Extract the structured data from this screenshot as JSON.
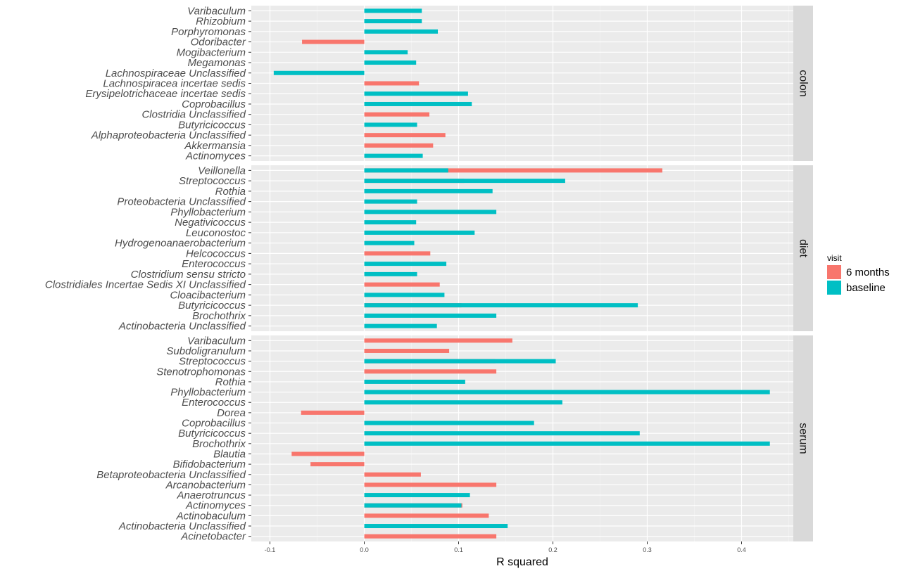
{
  "chart_data": {
    "type": "bar",
    "orientation": "horizontal",
    "xlabel": "R squared",
    "xlim": [
      -0.1,
      0.45
    ],
    "xticks": [
      -0.1,
      0.0,
      0.1,
      0.2,
      0.3,
      0.4
    ],
    "xtick_labels": [
      "-0.1",
      "0.0",
      "0.1",
      "0.2",
      "0.3",
      "0.4"
    ],
    "grid": true,
    "legend": {
      "title": "visit",
      "placement": "right",
      "entries": [
        {
          "name": "6 months",
          "color": "#f8766d"
        },
        {
          "name": "baseline",
          "color": "#00bfc4"
        }
      ]
    },
    "facets": [
      {
        "name": "colon",
        "categories": [
          "Varibaculum",
          "Rhizobium",
          "Porphyromonas",
          "Odoribacter",
          "Mogibacterium",
          "Megamonas",
          "Lachnospiraceae Unclassified",
          "Lachnospiracea incertae sedis",
          "Erysipelotrichaceae incertae sedis",
          "Coprobacillus",
          "Clostridia Unclassified",
          "Butyricicoccus",
          "Alphaproteobacteria Unclassified",
          "Akkermansia",
          "Actinomyces"
        ],
        "series": [
          {
            "name": "6 months",
            "values": [
              null,
              null,
              null,
              -0.066,
              null,
              null,
              null,
              0.058,
              null,
              null,
              0.069,
              null,
              0.086,
              0.073,
              null
            ]
          },
          {
            "name": "baseline",
            "values": [
              0.061,
              0.061,
              0.078,
              null,
              0.046,
              0.055,
              -0.096,
              null,
              0.11,
              0.114,
              null,
              0.056,
              null,
              null,
              0.062
            ]
          }
        ]
      },
      {
        "name": "diet",
        "categories": [
          "Veillonella",
          "Streptococcus",
          "Rothia",
          "Proteobacteria Unclassified",
          "Phyllobacterium",
          "Negativicoccus",
          "Leuconostoc",
          "Hydrogenoanaerobacterium",
          "Helcococcus",
          "Enterococcus",
          "Clostridium sensu stricto",
          "Clostridiales Incertae Sedis XI Unclassified",
          "Cloacibacterium",
          "Butyricicoccus",
          "Brochothrix",
          "Actinobacteria Unclassified"
        ],
        "series": [
          {
            "name": "6 months",
            "values": [
              0.316,
              0.106,
              null,
              null,
              null,
              null,
              null,
              null,
              0.07,
              null,
              null,
              0.08,
              null,
              0.103,
              null,
              null
            ]
          },
          {
            "name": "baseline",
            "values": [
              0.089,
              0.213,
              0.136,
              0.056,
              0.14,
              0.055,
              0.117,
              0.053,
              null,
              0.087,
              0.056,
              null,
              0.085,
              0.29,
              0.14,
              0.077
            ]
          }
        ]
      },
      {
        "name": "serum",
        "categories": [
          "Varibaculum",
          "Subdoligranulum",
          "Streptococcus",
          "Stenotrophomonas",
          "Rothia",
          "Phyllobacterium",
          "Enterococcus",
          "Dorea",
          "Coprobacillus",
          "Butyricicoccus",
          "Brochothrix",
          "Blautia",
          "Bifidobacterium",
          "Betaproteobacteria Unclassified",
          "Arcanobacterium",
          "Anaerotruncus",
          "Actinomyces",
          "Actinobaculum",
          "Actinobacteria Unclassified",
          "Acinetobacter"
        ],
        "series": [
          {
            "name": "6 months",
            "values": [
              0.157,
              0.09,
              0.139,
              0.14,
              null,
              null,
              null,
              -0.067,
              null,
              null,
              null,
              -0.077,
              -0.057,
              0.06,
              0.14,
              null,
              0.104,
              0.132,
              null,
              0.14
            ]
          },
          {
            "name": "baseline",
            "values": [
              null,
              null,
              0.203,
              null,
              0.107,
              0.43,
              0.21,
              null,
              0.18,
              0.292,
              0.43,
              null,
              null,
              null,
              null,
              0.112,
              0.103,
              null,
              0.152,
              null
            ]
          }
        ]
      }
    ]
  }
}
